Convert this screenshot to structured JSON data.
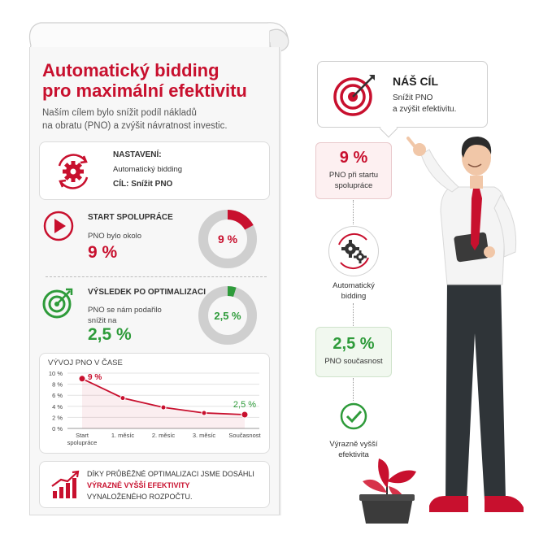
{
  "title_line1": "Automatický bidding",
  "title_line2": "pro maximální efektivitu",
  "intro_line1": "Naším cílem bylo snížit podíl nákladů",
  "intro_line2": "na obratu (PNO) a zvýšit návratnost investic.",
  "settings": {
    "heading": "NASTAVENÍ:",
    "value": "Automatický bidding",
    "goal": "CÍL: Snížit PNO"
  },
  "start": {
    "heading": "START SPOLUPRÁCE",
    "text": "PNO bylo okolo",
    "value": "9 %",
    "donut_label": "9 %",
    "donut_fraction": 0.09
  },
  "result": {
    "heading": "VÝSLEDEK PO OPTIMALIZACI",
    "text_line1": "PNO se nám podařilo",
    "text_line2": "snížit na",
    "value": "2,5 %",
    "donut_label": "2,5 %",
    "donut_fraction": 0.025
  },
  "chart_data": {
    "type": "line",
    "title": "VÝVOJ PNO V ČASE",
    "categories": [
      "Start spolupráce",
      "1. měsíc",
      "2. měsíc",
      "3. měsíc",
      "Současnost"
    ],
    "category_lines": [
      [
        "Start",
        "spolupráce"
      ],
      [
        "1. měsíc"
      ],
      [
        "2. měsíc"
      ],
      [
        "3. měsíc"
      ],
      [
        "Současnost"
      ]
    ],
    "values": [
      9,
      5.5,
      3.8,
      2.8,
      2.5
    ],
    "ylim": [
      0,
      10
    ],
    "yticks": [
      "0 %",
      "2 %",
      "4 %",
      "6 %",
      "8 %",
      "10 %"
    ],
    "annotations": [
      "9 %",
      "2,5 %"
    ],
    "grid": true,
    "color": "#c8102e"
  },
  "summary": {
    "line1": "DÍKY PRŮBĚŽNÉ OPTIMALIZACI JSME DOSÁHLI",
    "line2": "VÝRAZNĚ VYŠŠÍ EFEKTIVITY",
    "line3": "VYNALOŽENÉHO ROZPOČTU."
  },
  "goal": {
    "heading": "NÁŠ CÍL",
    "line1": "Snížit PNO",
    "line2": "a zvýšit efektivitu."
  },
  "timeline": {
    "start_value": "9 %",
    "start_line1": "PNO při startu",
    "start_line2": "spolupráce",
    "auto_line1": "Automatický",
    "auto_line2": "bidding",
    "now_value": "2,5 %",
    "now_label": "PNO současnost",
    "final_line1": "Výrazně vyšší",
    "final_line2": "efektivita"
  },
  "colors": {
    "accent": "#c8102e",
    "positive": "#2e9b3a",
    "muted": "#cfcfcf"
  },
  "icons": [
    "gears-refresh-icon",
    "play-icon",
    "target-check-icon",
    "growth-chart-icon",
    "target-arrow-icon",
    "gears-icon",
    "checkmark-icon"
  ]
}
